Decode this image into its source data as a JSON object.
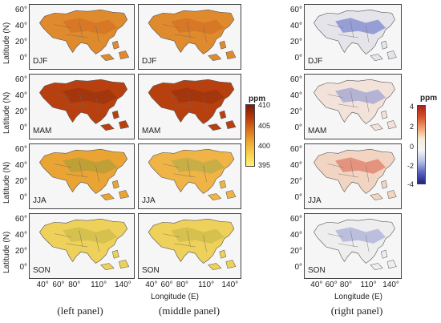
{
  "left_panel": {
    "caption": "(left panel)"
  },
  "middle_panel": {
    "caption": "(middle panel)"
  },
  "right_panel": {
    "caption": "(right panel)"
  },
  "seasons": [
    "DJF",
    "MAM",
    "JJA",
    "SON"
  ],
  "axes": {
    "ylabel": "Latitude (N)",
    "xlabel": "Longitude (E)",
    "yticks": [
      "60°",
      "40°",
      "20°",
      "0°"
    ],
    "xticks": [
      "40°",
      "60°",
      "80°",
      "110°",
      "140°"
    ]
  },
  "colorbar_conc": {
    "title": "ppm",
    "ticks": [
      "410",
      "405",
      "400",
      "395"
    ]
  },
  "colorbar_diff": {
    "title": "ppm",
    "ticks": [
      "4",
      "2",
      "0",
      "-2",
      "-4"
    ]
  }
}
